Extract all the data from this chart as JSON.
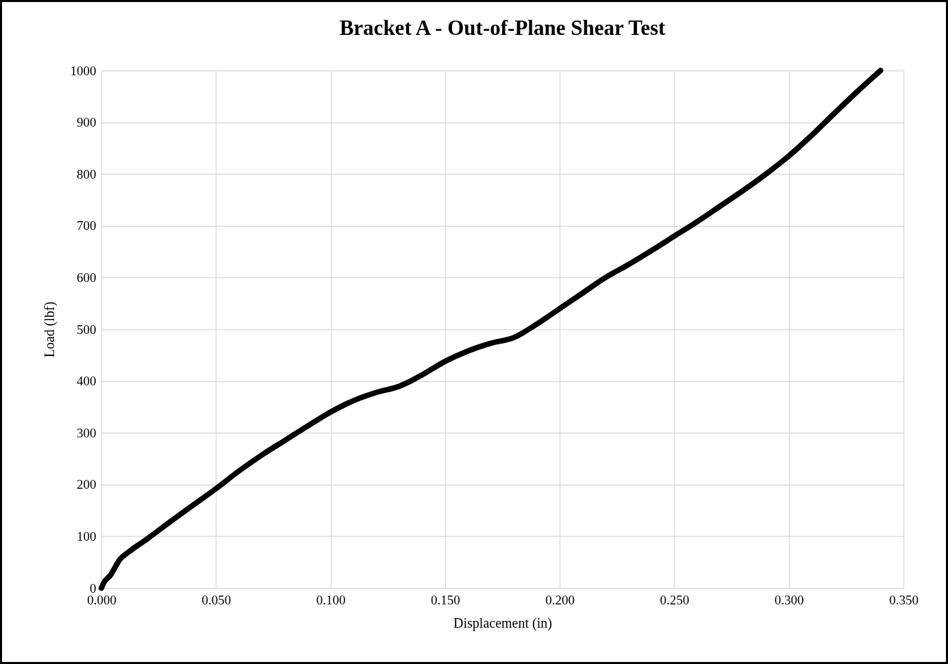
{
  "chart_data": {
    "type": "line",
    "title": "Bracket A - Out-of-Plane Shear Test",
    "xlabel": "Displacement (in)",
    "ylabel": "Load (lbf)",
    "x": [
      0,
      0.001,
      0.004,
      0.008,
      0.012,
      0.02,
      0.03,
      0.04,
      0.05,
      0.06,
      0.07,
      0.08,
      0.09,
      0.1,
      0.11,
      0.12,
      0.13,
      0.135,
      0.14,
      0.15,
      0.16,
      0.17,
      0.18,
      0.19,
      0.2,
      0.21,
      0.22,
      0.23,
      0.24,
      0.25,
      0.26,
      0.27,
      0.28,
      0.29,
      0.3,
      0.31,
      0.32,
      0.33,
      0.34
    ],
    "series": [
      {
        "color": "#000000",
        "values": [
          0,
          10,
          25,
          55,
          70,
          95,
          128,
          160,
          192,
          226,
          257,
          285,
          313,
          340,
          362,
          378,
          390,
          400,
          412,
          438,
          458,
          473,
          484,
          510,
          540,
          570,
          600,
          625,
          652,
          680,
          708,
          738,
          768,
          800,
          835,
          875,
          918,
          960,
          1000
        ]
      }
    ],
    "xlim": [
      0,
      0.35
    ],
    "xticks": [
      {
        "value": 0,
        "label": "0.000"
      },
      {
        "value": 0.05,
        "label": "0.050"
      },
      {
        "value": 0.1,
        "label": "0.100"
      },
      {
        "value": 0.15,
        "label": "0.150"
      },
      {
        "value": 0.2,
        "label": "0.200"
      },
      {
        "value": 0.25,
        "label": "0.250"
      },
      {
        "value": 0.3,
        "label": "0.300"
      },
      {
        "value": 0.35,
        "label": "0.350"
      }
    ],
    "ylim": [
      0,
      1000
    ],
    "yticks": [
      0,
      100,
      200,
      300,
      400,
      500,
      600,
      700,
      800,
      900,
      1000
    ],
    "grid": true,
    "line_style": "solid"
  }
}
